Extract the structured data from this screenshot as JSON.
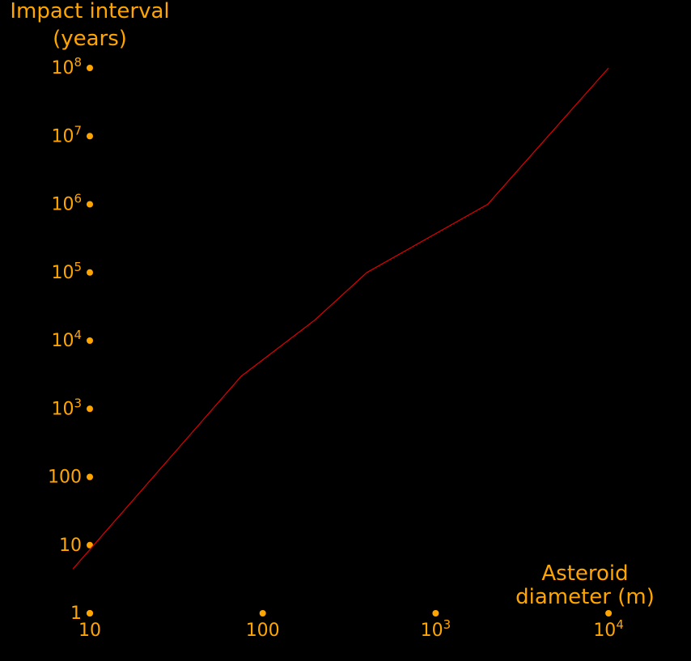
{
  "colors": {
    "background": "#000000",
    "text": "#ffa500",
    "line": "#e00000"
  },
  "chart_data": {
    "type": "line",
    "ylabel_lines": [
      "Impact interval",
      "(years)"
    ],
    "xlabel_lines": [
      "Asteroid",
      "diameter (m)"
    ],
    "xscale": "log",
    "yscale": "log",
    "xlim": [
      10,
      10000
    ],
    "ylim": [
      1,
      100000000
    ],
    "grid": false,
    "x_ticks": [
      {
        "value": 10,
        "base": "10",
        "exp": ""
      },
      {
        "value": 100,
        "base": "100",
        "exp": ""
      },
      {
        "value": 1000,
        "base": "10",
        "exp": "3"
      },
      {
        "value": 10000,
        "base": "10",
        "exp": "4"
      }
    ],
    "y_ticks": [
      {
        "value": 1,
        "base": "1",
        "exp": ""
      },
      {
        "value": 10,
        "base": "10",
        "exp": ""
      },
      {
        "value": 100,
        "base": "100",
        "exp": ""
      },
      {
        "value": 1000,
        "base": "10",
        "exp": "3"
      },
      {
        "value": 10000,
        "base": "10",
        "exp": "4"
      },
      {
        "value": 100000,
        "base": "10",
        "exp": "5"
      },
      {
        "value": 1000000,
        "base": "10",
        "exp": "6"
      },
      {
        "value": 10000000,
        "base": "10",
        "exp": "7"
      },
      {
        "value": 100000000,
        "base": "10",
        "exp": "8"
      }
    ],
    "series": [
      {
        "x": [
          8,
          75,
          200,
          400,
          2000,
          10000
        ],
        "y": [
          4.5,
          3000,
          20000,
          100000,
          1000000,
          100000000
        ]
      }
    ]
  }
}
